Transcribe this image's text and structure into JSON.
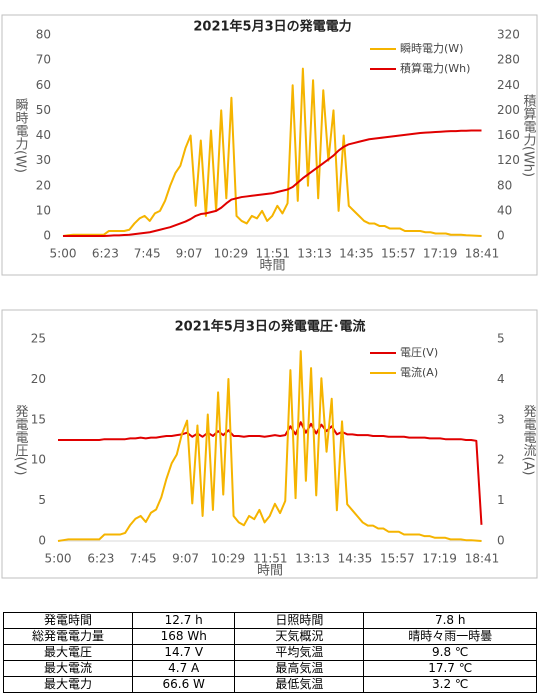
{
  "chart_data": [
    {
      "type": "line",
      "title": "2021年5月3日の発電電力",
      "xlabel": "時間",
      "ylabel": "瞬時電力(W)",
      "y2label": "積算電力(Wh)",
      "xlim": [
        "5:00",
        "18:41"
      ],
      "xticks": [
        "5:00",
        "6:23",
        "7:45",
        "9:07",
        "10:29",
        "11:51",
        "13:13",
        "14:35",
        "15:57",
        "17:19",
        "18:41"
      ],
      "ylim": [
        0,
        80
      ],
      "yticks": [
        0,
        10,
        20,
        30,
        40,
        50,
        60,
        70,
        80
      ],
      "y2lim": [
        0,
        320
      ],
      "y2ticks": [
        0,
        40,
        80,
        120,
        160,
        200,
        240,
        280,
        320
      ],
      "legend": "upper right",
      "grid": false,
      "x": [
        "5:00",
        "5:10",
        "5:20",
        "5:30",
        "5:40",
        "5:50",
        "6:00",
        "6:10",
        "6:20",
        "6:30",
        "6:40",
        "6:50",
        "7:00",
        "7:10",
        "7:20",
        "7:30",
        "7:40",
        "7:50",
        "8:00",
        "8:10",
        "8:20",
        "8:30",
        "8:40",
        "8:50",
        "9:00",
        "9:10",
        "9:20",
        "9:30",
        "9:40",
        "9:50",
        "10:00",
        "10:10",
        "10:20",
        "10:30",
        "10:40",
        "10:50",
        "11:00",
        "11:10",
        "11:20",
        "11:30",
        "11:40",
        "11:50",
        "12:00",
        "12:10",
        "12:20",
        "12:30",
        "12:40",
        "12:50",
        "13:00",
        "13:10",
        "13:20",
        "13:30",
        "13:40",
        "13:50",
        "14:00",
        "14:10",
        "14:20",
        "14:30",
        "14:40",
        "14:50",
        "15:00",
        "15:10",
        "15:20",
        "15:30",
        "15:40",
        "15:50",
        "16:00",
        "16:10",
        "16:20",
        "16:30",
        "16:40",
        "16:50",
        "17:00",
        "17:10",
        "17:20",
        "17:30",
        "17:40",
        "17:50",
        "18:00",
        "18:10",
        "18:20",
        "18:30",
        "18:40"
      ],
      "series": [
        {
          "name": "瞬時電力(W)",
          "color": "#f5b400",
          "axis": "y",
          "values": [
            0,
            0.3,
            0.5,
            0.5,
            0.5,
            0.5,
            0.5,
            0.5,
            0.5,
            2,
            2,
            2,
            2,
            2.5,
            5,
            7,
            8,
            6,
            9,
            10,
            14,
            20,
            25,
            28,
            35,
            40,
            12,
            38,
            8,
            42,
            10,
            50,
            15,
            55,
            8,
            6,
            5,
            8,
            7,
            10,
            6,
            8,
            12,
            9,
            13,
            60,
            14,
            66.6,
            20,
            62,
            15,
            58,
            30,
            50,
            10,
            40,
            12,
            10,
            8,
            6,
            5,
            5,
            4,
            4,
            3,
            3,
            3,
            2,
            2,
            2,
            2,
            1.5,
            1.5,
            1,
            1,
            1,
            0.5,
            0.5,
            0.5,
            0.3,
            0.2,
            0.1,
            0
          ]
        },
        {
          "name": "積算電力(Wh)",
          "color": "#e00000",
          "axis": "y2",
          "values": [
            0,
            0,
            0,
            0,
            0,
            0,
            0,
            0,
            0,
            0.5,
            1,
            1,
            1.5,
            2,
            3,
            4,
            5,
            6,
            8,
            10,
            12,
            14,
            17,
            20,
            23,
            27,
            32,
            35,
            36,
            38,
            40,
            45,
            52,
            58,
            60,
            62,
            63,
            64,
            65,
            66,
            67,
            68,
            70,
            72,
            74,
            78,
            85,
            92,
            98,
            104,
            110,
            116,
            122,
            128,
            136,
            142,
            146,
            148,
            150,
            152,
            154,
            155,
            156,
            157,
            158,
            159,
            160,
            161,
            162,
            163,
            164,
            164.5,
            165,
            165.5,
            166,
            166.5,
            167,
            167,
            167.5,
            167.5,
            168,
            168,
            168
          ]
        }
      ]
    },
    {
      "type": "line",
      "title": "2021年5月3日の発電電圧･電流",
      "xlabel": "時間",
      "ylabel": "発電電圧(V)",
      "y2label": "発電電流(A)",
      "xlim": [
        "5:00",
        "18:41"
      ],
      "xticks": [
        "5:00",
        "6:23",
        "7:45",
        "9:07",
        "10:29",
        "11:51",
        "13:13",
        "14:35",
        "15:57",
        "17:19",
        "18:41"
      ],
      "ylim": [
        0,
        25
      ],
      "yticks": [
        0,
        5,
        10,
        15,
        20,
        25
      ],
      "y2lim": [
        0,
        5
      ],
      "y2ticks": [
        0,
        1,
        2,
        3,
        4,
        5
      ],
      "legend": "upper right",
      "grid": false,
      "x": [
        "5:00",
        "5:10",
        "5:20",
        "5:30",
        "5:40",
        "5:50",
        "6:00",
        "6:10",
        "6:20",
        "6:30",
        "6:40",
        "6:50",
        "7:00",
        "7:10",
        "7:20",
        "7:30",
        "7:40",
        "7:50",
        "8:00",
        "8:10",
        "8:20",
        "8:30",
        "8:40",
        "8:50",
        "9:00",
        "9:10",
        "9:20",
        "9:30",
        "9:40",
        "9:50",
        "10:00",
        "10:10",
        "10:20",
        "10:30",
        "10:40",
        "10:50",
        "11:00",
        "11:10",
        "11:20",
        "11:30",
        "11:40",
        "11:50",
        "12:00",
        "12:10",
        "12:20",
        "12:30",
        "12:40",
        "12:50",
        "13:00",
        "13:10",
        "13:20",
        "13:30",
        "13:40",
        "13:50",
        "14:00",
        "14:10",
        "14:20",
        "14:30",
        "14:40",
        "14:50",
        "15:00",
        "15:10",
        "15:20",
        "15:30",
        "15:40",
        "15:50",
        "16:00",
        "16:10",
        "16:20",
        "16:30",
        "16:40",
        "16:50",
        "17:00",
        "17:10",
        "17:20",
        "17:30",
        "17:40",
        "17:50",
        "18:00",
        "18:10",
        "18:20",
        "18:30",
        "18:40"
      ],
      "series": [
        {
          "name": "電圧(V)",
          "color": "#e00000",
          "axis": "y",
          "values": [
            12.5,
            12.5,
            12.5,
            12.5,
            12.5,
            12.5,
            12.5,
            12.5,
            12.5,
            12.6,
            12.6,
            12.6,
            12.6,
            12.6,
            12.7,
            12.7,
            12.8,
            12.7,
            12.8,
            12.8,
            12.9,
            13,
            13,
            13.1,
            13.2,
            13.4,
            12.9,
            13.3,
            12.9,
            13.4,
            13,
            13.6,
            13.1,
            13.7,
            13,
            13,
            12.9,
            13,
            13,
            13,
            12.9,
            13,
            13.1,
            13,
            13.1,
            14.2,
            13.2,
            14.7,
            13.4,
            14.5,
            13.3,
            14.4,
            13.6,
            14.2,
            13.2,
            13.5,
            13.2,
            13.2,
            13.1,
            13.1,
            13.1,
            13,
            13,
            13,
            12.9,
            12.9,
            12.9,
            12.9,
            12.8,
            12.8,
            12.8,
            12.8,
            12.7,
            12.7,
            12.7,
            12.6,
            12.6,
            12.6,
            12.6,
            12.5,
            12.5,
            12.4,
            2
          ]
        },
        {
          "name": "電流(A)",
          "color": "#f5b400",
          "axis": "y2",
          "values": [
            0,
            0.02,
            0.04,
            0.04,
            0.04,
            0.04,
            0.04,
            0.04,
            0.04,
            0.16,
            0.16,
            0.16,
            0.16,
            0.2,
            0.4,
            0.55,
            0.62,
            0.47,
            0.7,
            0.78,
            1.08,
            1.54,
            1.92,
            2.14,
            2.65,
            2.98,
            0.93,
            2.86,
            0.62,
            3.13,
            0.77,
            3.68,
            1.15,
            4.01,
            0.62,
            0.46,
            0.39,
            0.62,
            0.54,
            0.77,
            0.46,
            0.62,
            0.92,
            0.69,
            0.99,
            4.23,
            1.06,
            4.7,
            1.49,
            4.28,
            1.13,
            4.03,
            2.21,
            3.52,
            0.76,
            2.96,
            0.91,
            0.76,
            0.61,
            0.46,
            0.38,
            0.38,
            0.31,
            0.31,
            0.23,
            0.23,
            0.23,
            0.16,
            0.16,
            0.16,
            0.16,
            0.12,
            0.12,
            0.08,
            0.08,
            0.08,
            0.04,
            0.04,
            0.04,
            0.02,
            0.02,
            0.01,
            0
          ]
        }
      ]
    }
  ],
  "table": {
    "rows": [
      [
        "発電時間",
        "12.7 h",
        "日照時間",
        "7.8 h"
      ],
      [
        "総発電電力量",
        "168 Wh",
        "天気概況",
        "晴時々雨一時曇"
      ],
      [
        "最大電圧",
        "14.7 V",
        "平均気温",
        "9.8 ℃"
      ],
      [
        "最大電流",
        "4.7 A",
        "最高気温",
        "17.7 ℃"
      ],
      [
        "最大電力",
        "66.6 W",
        "最低気温",
        "3.2 ℃"
      ]
    ]
  }
}
